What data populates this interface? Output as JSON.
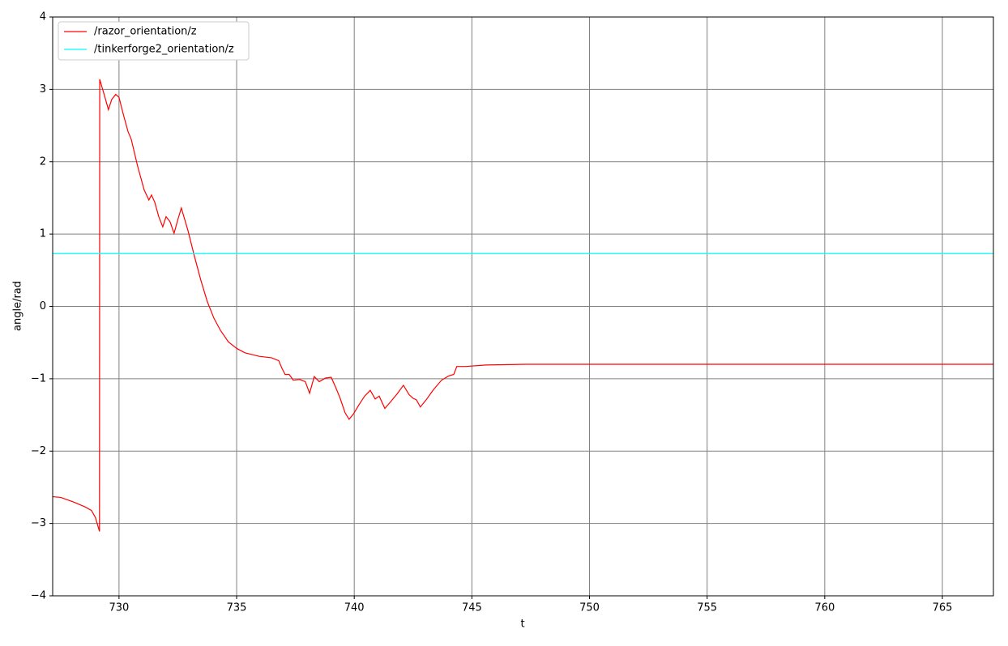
{
  "chart_data": {
    "type": "line",
    "xlabel": "t",
    "ylabel": "angle/rad",
    "xlim": [
      727.18,
      767.17
    ],
    "ylim": [
      -4,
      4
    ],
    "xticks": [
      730,
      735,
      740,
      745,
      750,
      755,
      760,
      765
    ],
    "yticks": [
      {
        "value": -4,
        "label": "−4"
      },
      {
        "value": -3,
        "label": "−3"
      },
      {
        "value": -2,
        "label": "−2"
      },
      {
        "value": -1,
        "label": "−1"
      },
      0,
      1,
      2,
      3,
      4
    ],
    "grid": true,
    "legend": "upper left",
    "series": [
      {
        "name": "/razor_orientation/z",
        "color": "#ff0000",
        "x": [
          727.18,
          727.52,
          728.04,
          728.55,
          728.83,
          729.0,
          729.17,
          729.18,
          729.35,
          729.55,
          729.69,
          729.86,
          730.0,
          730.17,
          730.38,
          730.52,
          730.79,
          731.07,
          731.27,
          731.38,
          731.52,
          731.69,
          731.86,
          732.0,
          732.17,
          732.34,
          732.51,
          732.65,
          732.93,
          733.2,
          733.48,
          733.75,
          734.03,
          734.31,
          734.65,
          735.0,
          735.34,
          735.96,
          736.48,
          736.79,
          736.92,
          737.06,
          737.23,
          737.41,
          737.68,
          737.92,
          738.1,
          738.3,
          738.51,
          738.78,
          739.02,
          739.2,
          739.4,
          739.61,
          739.78,
          739.96,
          740.2,
          740.44,
          740.68,
          740.89,
          741.06,
          741.3,
          741.54,
          741.82,
          742.09,
          742.33,
          742.5,
          742.64,
          742.81,
          743.06,
          743.37,
          743.71,
          744.02,
          744.23,
          744.36,
          744.74,
          745.6,
          747.33,
          752.5,
          759.38,
          767.17
        ],
        "values": [
          -2.63,
          -2.64,
          -2.7,
          -2.77,
          -2.82,
          -2.92,
          -3.11,
          3.14,
          2.95,
          2.72,
          2.86,
          2.93,
          2.89,
          2.67,
          2.42,
          2.31,
          1.94,
          1.61,
          1.47,
          1.54,
          1.44,
          1.24,
          1.1,
          1.24,
          1.17,
          1.01,
          1.21,
          1.36,
          1.05,
          0.7,
          0.36,
          0.07,
          -0.16,
          -0.33,
          -0.49,
          -0.58,
          -0.64,
          -0.69,
          -0.71,
          -0.75,
          -0.85,
          -0.94,
          -0.94,
          -1.02,
          -1.01,
          -1.04,
          -1.2,
          -0.97,
          -1.04,
          -0.99,
          -0.98,
          -1.11,
          -1.27,
          -1.47,
          -1.56,
          -1.49,
          -1.36,
          -1.24,
          -1.16,
          -1.28,
          -1.24,
          -1.41,
          -1.32,
          -1.21,
          -1.09,
          -1.22,
          -1.27,
          -1.29,
          -1.39,
          -1.29,
          -1.15,
          -1.02,
          -0.96,
          -0.94,
          -0.83,
          -0.83,
          -0.81,
          -0.8,
          -0.8,
          -0.8,
          -0.8
        ]
      },
      {
        "name": "/tinkerforge2_orientation/z",
        "color": "#00ffff",
        "x": [
          727.18,
          767.17
        ],
        "values": [
          0.73,
          0.73
        ]
      }
    ]
  }
}
